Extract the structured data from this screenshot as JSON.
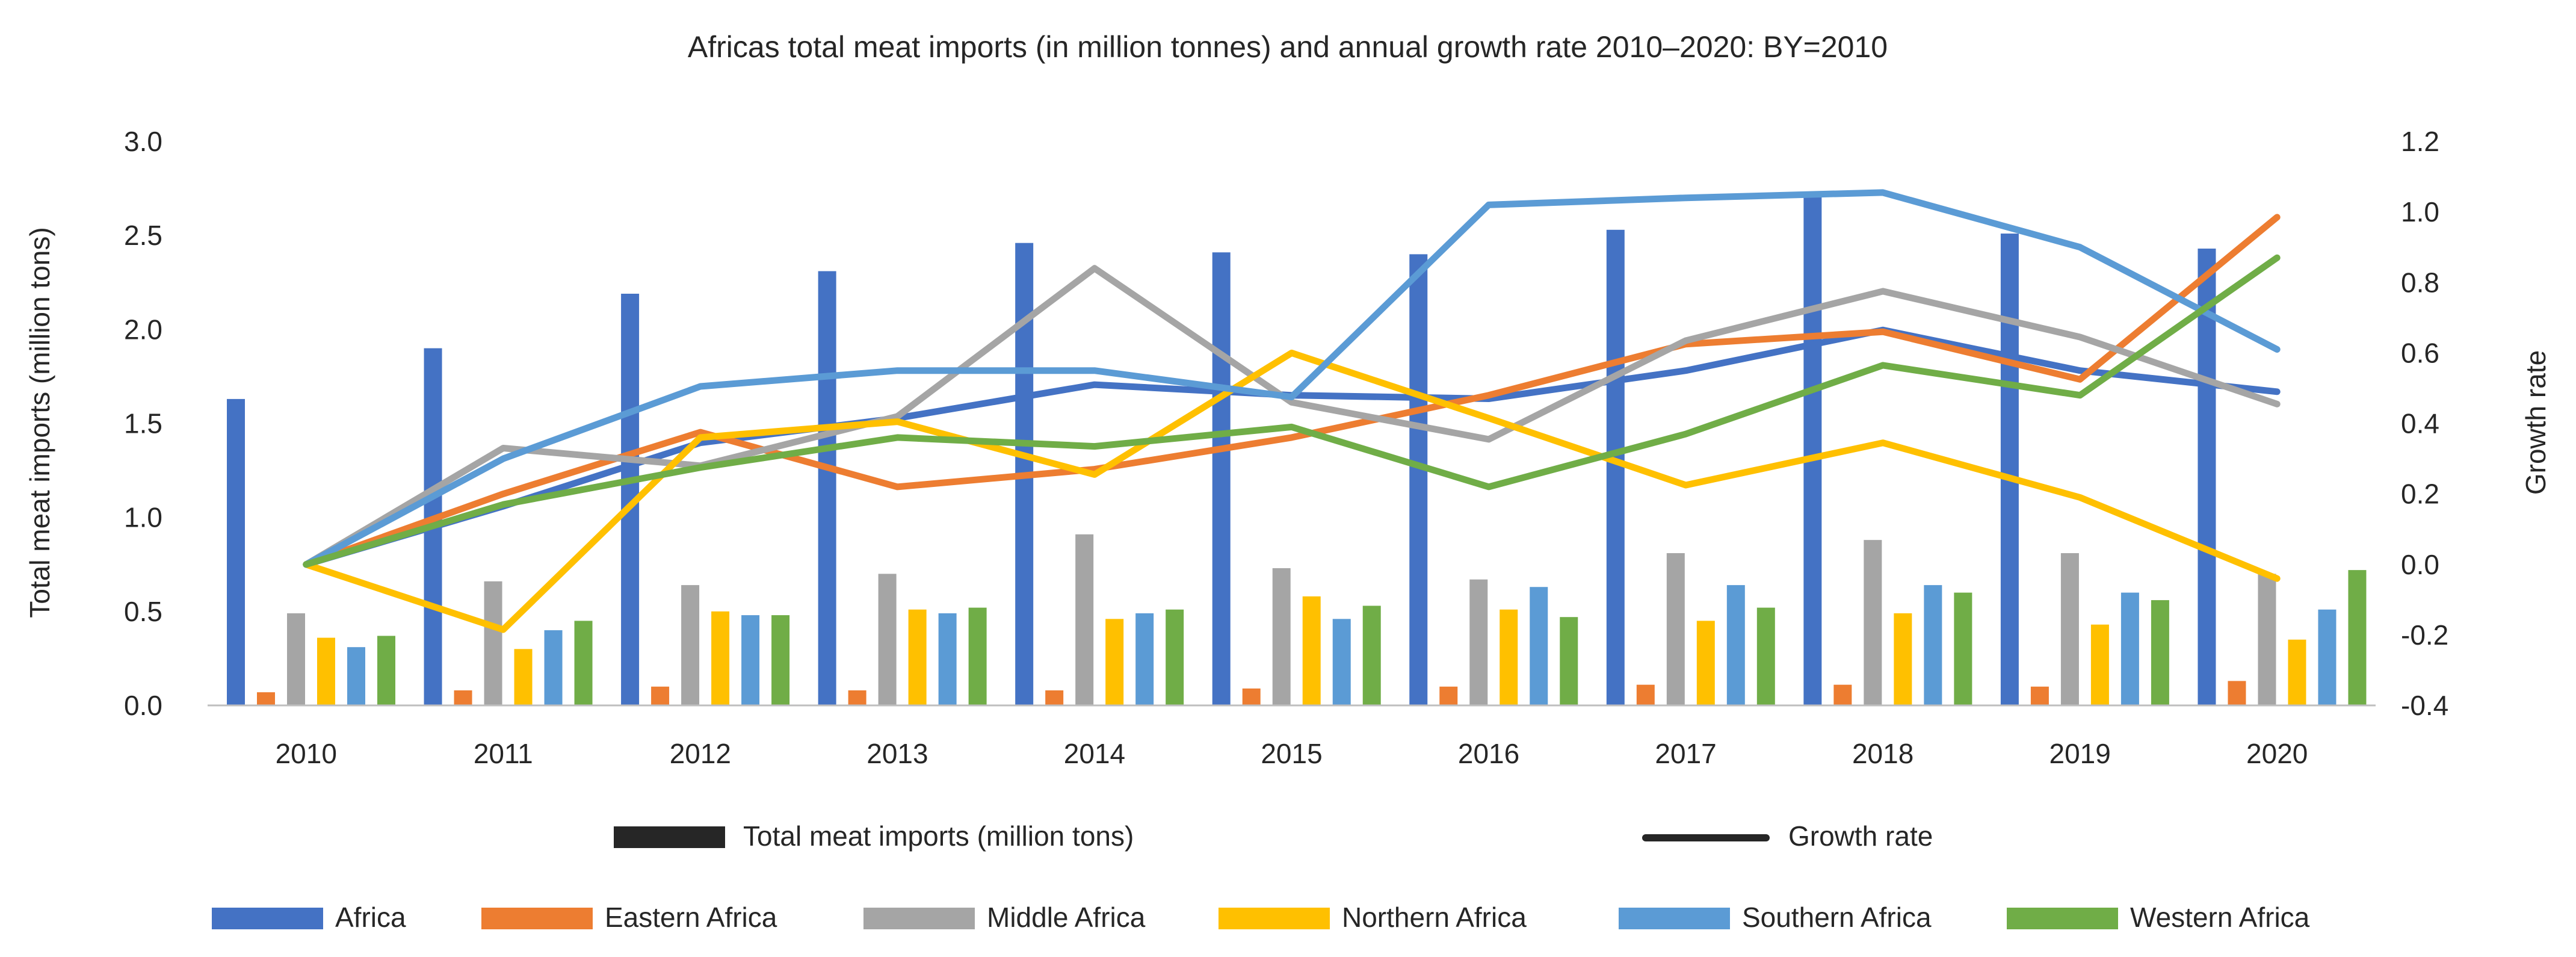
{
  "chart_data": {
    "type": "bar",
    "title": "Africas total meat imports (in million tonnes) and annual growth rate 2010–2020: BY=2010",
    "ylabel": "Total meat imports (million tons)",
    "y2label": "Growth rate",
    "ylim": [
      0,
      3.0
    ],
    "y2lim": [
      -0.4,
      1.2
    ],
    "yticks": [
      "0.0",
      "0.5",
      "1.0",
      "1.5",
      "2.0",
      "2.5",
      "3.0"
    ],
    "y2ticks": [
      "-0.4",
      "-0.2",
      "0.0",
      "0.2",
      "0.4",
      "0.6",
      "0.8",
      "1.0",
      "1.2"
    ],
    "categories": [
      "2010",
      "2011",
      "2012",
      "2013",
      "2014",
      "2015",
      "2016",
      "2017",
      "2018",
      "2019",
      "2020"
    ],
    "grid": false,
    "legend_position": "bottom",
    "legend_type": {
      "bar_label": "Total meat imports (million tons)",
      "line_label": "Growth rate"
    },
    "series": [
      {
        "name": "Africa",
        "color": "#4472C4",
        "values": [
          1.63,
          1.9,
          2.19,
          2.31,
          2.46,
          2.41,
          2.4,
          2.53,
          2.71,
          2.51,
          2.43
        ],
        "growth": [
          0.0,
          0.165,
          0.345,
          0.415,
          0.51,
          0.48,
          0.47,
          0.55,
          0.665,
          0.55,
          0.49
        ]
      },
      {
        "name": "Eastern Africa",
        "color": "#ED7D31",
        "values": [
          0.07,
          0.08,
          0.1,
          0.08,
          0.08,
          0.09,
          0.1,
          0.11,
          0.11,
          0.1,
          0.13
        ],
        "growth": [
          0.0,
          0.2,
          0.375,
          0.22,
          0.27,
          0.36,
          0.48,
          0.625,
          0.66,
          0.525,
          0.985
        ]
      },
      {
        "name": "Middle Africa",
        "color": "#A5A5A5",
        "values": [
          0.49,
          0.66,
          0.64,
          0.7,
          0.91,
          0.73,
          0.67,
          0.81,
          0.88,
          0.81,
          0.7
        ],
        "growth": [
          0.0,
          0.33,
          0.28,
          0.42,
          0.84,
          0.46,
          0.355,
          0.635,
          0.775,
          0.645,
          0.455
        ]
      },
      {
        "name": "Northern Africa",
        "color": "#FFC000",
        "values": [
          0.36,
          0.3,
          0.5,
          0.51,
          0.46,
          0.58,
          0.51,
          0.45,
          0.49,
          0.43,
          0.35
        ],
        "growth": [
          0.0,
          -0.185,
          0.36,
          0.405,
          0.255,
          0.6,
          0.415,
          0.225,
          0.345,
          0.19,
          -0.04
        ]
      },
      {
        "name": "Southern Africa",
        "color": "#5B9BD5",
        "values": [
          0.31,
          0.4,
          0.48,
          0.49,
          0.49,
          0.46,
          0.63,
          0.64,
          0.64,
          0.6,
          0.51
        ],
        "growth": [
          0.0,
          0.3,
          0.505,
          0.55,
          0.55,
          0.475,
          1.02,
          1.04,
          1.055,
          0.9,
          0.61
        ]
      },
      {
        "name": "Western Africa",
        "color": "#70AD47",
        "values": [
          0.37,
          0.45,
          0.48,
          0.52,
          0.51,
          0.53,
          0.47,
          0.52,
          0.6,
          0.56,
          0.72
        ],
        "growth": [
          0.0,
          0.17,
          0.275,
          0.36,
          0.335,
          0.39,
          0.22,
          0.37,
          0.565,
          0.48,
          0.87
        ]
      }
    ]
  }
}
